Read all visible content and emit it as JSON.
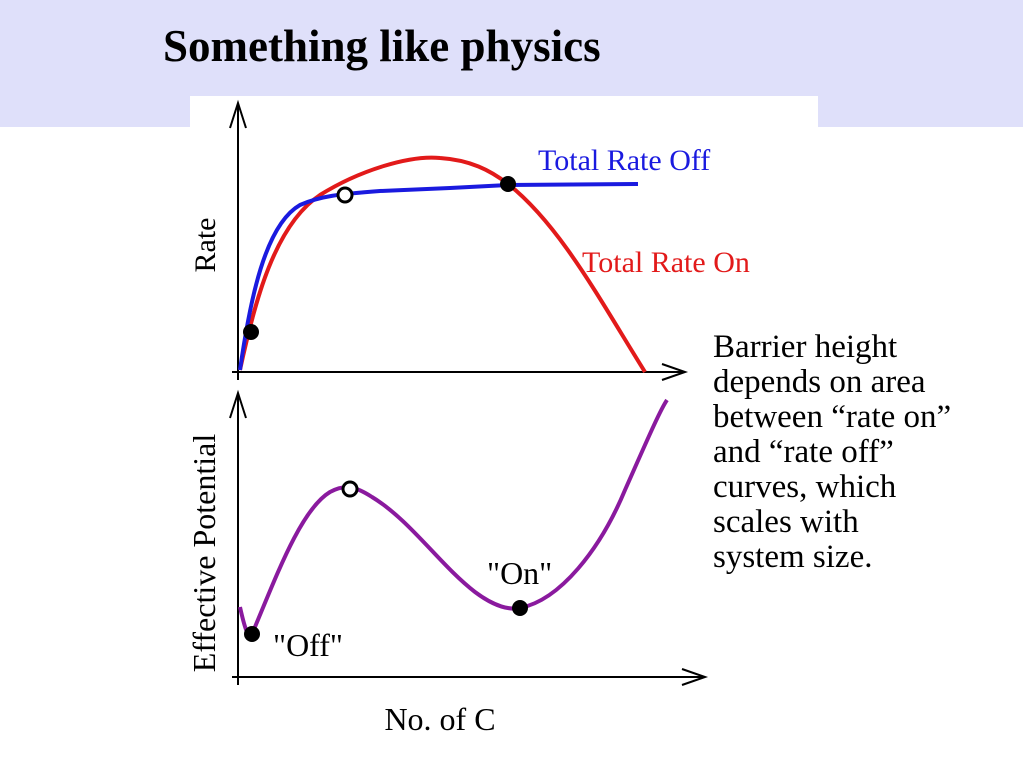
{
  "slide": {
    "title": "Something like physics",
    "caption_lines": [
      "Barrier height",
      "depends on area",
      "between “rate on”",
      "and “rate off”",
      "curves, which",
      "scales with",
      "system size."
    ]
  },
  "figure": {
    "top_plot": {
      "ylabel": "Rate",
      "curve_off_label": "Total Rate Off",
      "curve_on_label": "Total Rate On"
    },
    "bottom_plot": {
      "ylabel": "Effective Potential",
      "xlabel": "No. of C",
      "off_state_label": "\"Off\"",
      "on_state_label": "\"On\""
    }
  },
  "colors": {
    "header_band": "#dfe0fa",
    "rate_off_curve": "#1a1adf",
    "rate_on_curve": "#e21a1a",
    "potential_curve": "#8a1a9e"
  }
}
